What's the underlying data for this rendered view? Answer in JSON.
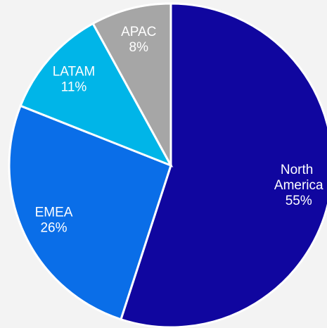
{
  "chart_data": {
    "type": "pie",
    "categories": [
      "North America",
      "EMEA",
      "LATAM",
      "APAC"
    ],
    "values": [
      55,
      26,
      11,
      8
    ],
    "value_labels": [
      "55%",
      "26%",
      "11%",
      "8%"
    ],
    "colors": [
      "#10069f",
      "#0a6ee8",
      "#00b5e8",
      "#a6a6a6"
    ]
  }
}
